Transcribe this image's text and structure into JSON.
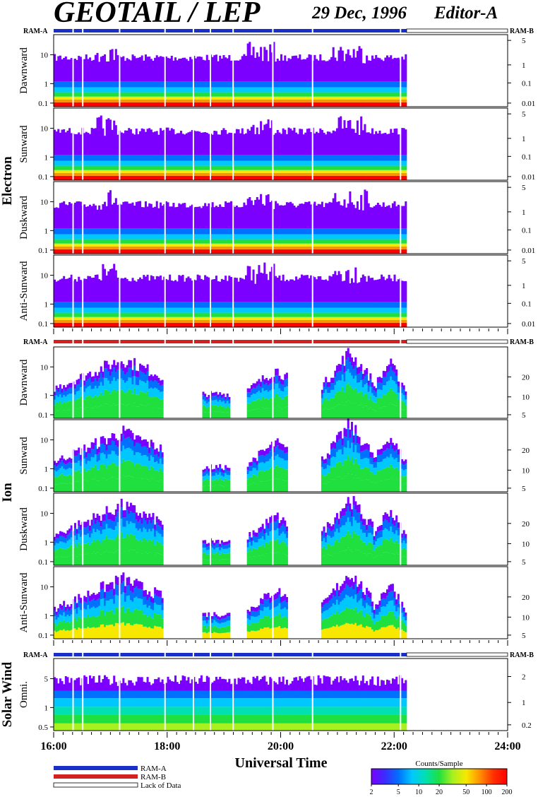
{
  "title": "GEOTAIL / LEP",
  "date": "29 Dec, 1996",
  "editor": "Editor-A",
  "colors": {
    "ram_a": "#1a2ec8",
    "ram_b": "#d42020",
    "palette": [
      "#7b00ff",
      "#3a2cff",
      "#0070ff",
      "#00c8ff",
      "#00e0b0",
      "#20e040",
      "#a8f020",
      "#f8e800",
      "#ff9000",
      "#ff3000",
      "#ff0000"
    ]
  },
  "groups": [
    {
      "name": "Electron",
      "panels": [
        "Dawnward",
        "Sunward",
        "Duskward",
        "Anti-Sunward"
      ]
    },
    {
      "name": "Ion",
      "panels": [
        "Dawnward",
        "Sunward",
        "Duskward",
        "Anti-Sunward"
      ]
    },
    {
      "name": "Solar Wind",
      "panels": [
        "Omni."
      ]
    }
  ],
  "ram_labels": {
    "left": "RAM-A",
    "right": "RAM-B"
  },
  "axes": {
    "electron_left_ticks": [
      "10",
      "1",
      "0.1"
    ],
    "electron_right_ticks": [
      "5",
      "1",
      "0.1",
      "0.01"
    ],
    "ion_left_ticks": [
      "10",
      "1",
      "0.1"
    ],
    "ion_right_ticks": [
      "20",
      "10",
      "5"
    ],
    "solar_left_ticks": [
      "5",
      "1",
      "0.5"
    ],
    "solar_right_ticks": [
      "2",
      "1",
      "0.2"
    ],
    "x_ticks": [
      "16:00",
      "18:00",
      "20:00",
      "22:00",
      "24:00"
    ],
    "xlabel": "Universal Time"
  },
  "legend": {
    "ram_a": "RAM-A",
    "ram_b": "RAM-B",
    "lack": "Lack of Data",
    "colorbar_title": "Counts/Sample",
    "colorbar_ticks": [
      "2",
      "5",
      "10",
      "20",
      "50",
      "100",
      "200"
    ]
  },
  "chart_data": {
    "type": "heatmap",
    "title": "GEOTAIL / LEP",
    "xlabel": "Universal Time",
    "x_range_hours": [
      16,
      24
    ],
    "data_end_hour": 22.22,
    "colorbar": {
      "label": "Counts/Sample",
      "range": [
        2,
        200
      ],
      "scale": "log"
    },
    "ram_bars": [
      {
        "panel_group": "Electron",
        "mode": "RAM-A",
        "from": 16.0,
        "to": 22.22
      },
      {
        "panel_group": "Ion",
        "mode": "RAM-B",
        "from": 16.0,
        "to": 22.22
      },
      {
        "panel_group": "Solar Wind",
        "mode": "RAM-A",
        "from": 16.0,
        "to": 22.22
      }
    ],
    "data_gaps_hours": [
      16.33,
      16.5,
      17.15,
      17.95,
      18.45,
      18.75,
      19.15,
      19.85,
      20.55,
      22.1
    ]
  }
}
